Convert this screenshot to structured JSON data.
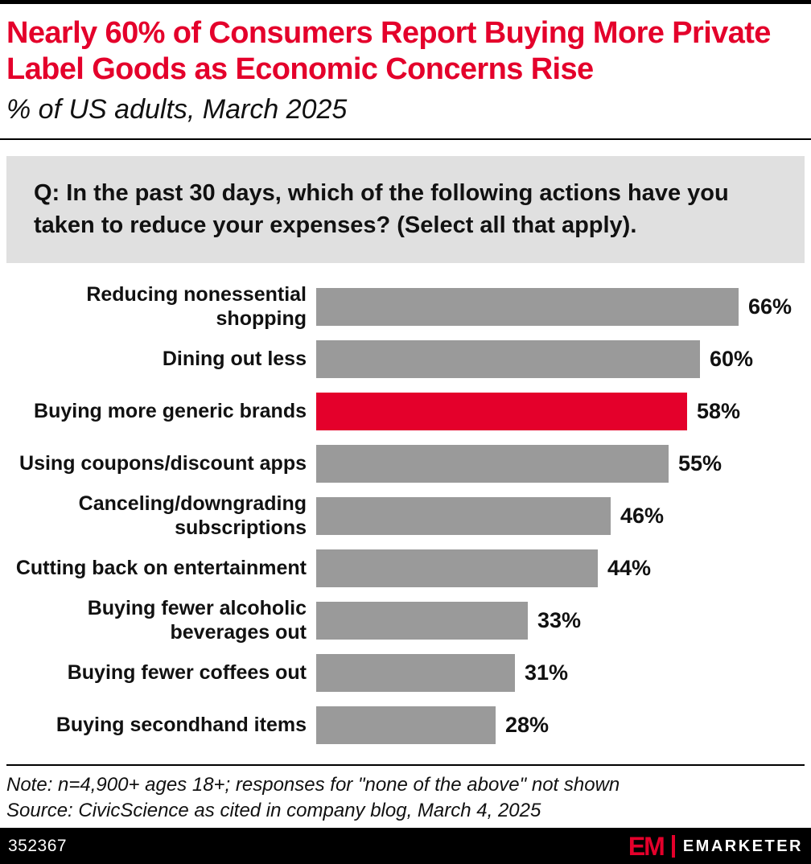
{
  "header": {
    "title": "Nearly 60% of Consumers Report Buying More Private Label Goods as Economic Concerns Rise",
    "subtitle": "% of US adults, March 2025"
  },
  "question": "Q: In the past 30 days, which of the following actions have you taken to reduce your expenses? (Select all that apply).",
  "chart_data": {
    "type": "bar",
    "orientation": "horizontal",
    "title": "Nearly 60% of Consumers Report Buying More Private Label Goods as Economic Concerns Rise",
    "subtitle": "% of US adults, March 2025",
    "categories": [
      "Reducing nonessential shopping",
      "Dining out less",
      "Buying more generic brands",
      "Using coupons/discount apps",
      "Canceling/downgrading subscriptions",
      "Cutting back on entertainment",
      "Buying fewer alcoholic beverages out",
      "Buying fewer coffees out",
      "Buying secondhand items"
    ],
    "values": [
      66,
      60,
      58,
      55,
      46,
      44,
      33,
      31,
      28
    ],
    "value_suffix": "%",
    "highlight_index": 2,
    "bar_color": "#9A9A9A",
    "highlight_color": "#E4002B",
    "xlim": [
      0,
      70
    ],
    "grid": false,
    "legend": "none",
    "value_labels": "outside-end"
  },
  "footnote": {
    "note": "Note: n=4,900+ ages 18+; responses for \"none of the above\" not shown",
    "source": "Source: CivicScience as cited in company blog, March 4, 2025"
  },
  "footer": {
    "chart_id": "352367",
    "logo_monogram": "EM",
    "logo_wordmark": "EMARKETER"
  },
  "colors": {
    "accent_red": "#E4002B",
    "bar_gray": "#9A9A9A",
    "question_bg": "#E0E0E0",
    "footer_bg": "#000000"
  }
}
